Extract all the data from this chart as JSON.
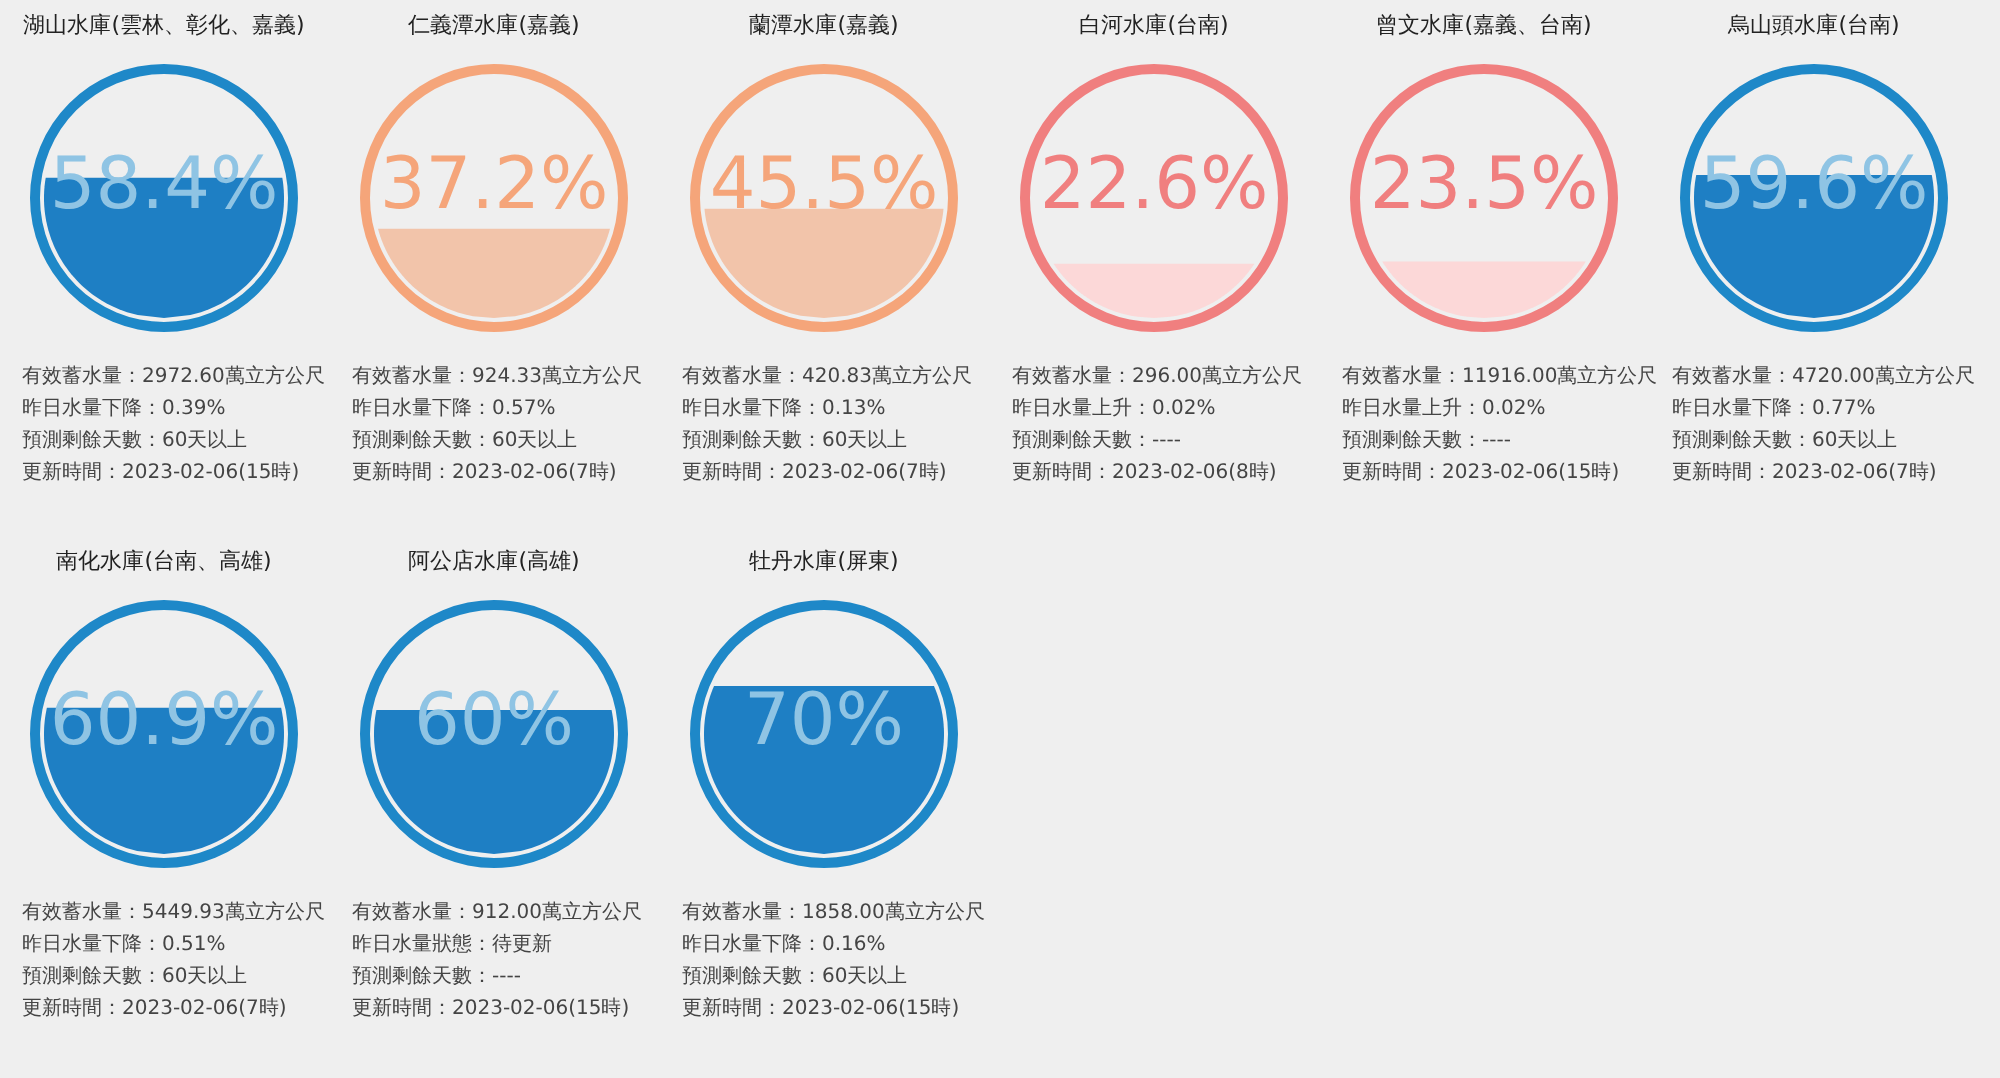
{
  "chart_data": [
    {
      "type": "other",
      "title": "湖山水庫(雲林、彰化、嘉義)",
      "color": "#1e7fc4",
      "series": [
        {
          "color": "#1e88c8",
          "values": [
            58.4
          ],
          "value_labels": [
            "58.4%"
          ]
        }
      ],
      "annotations": [
        "有效蓄水量：2972.60萬立方公尺",
        "昨日水量下降：0.39%",
        "預測剩餘天數：60天以上",
        "更新時間：2023-02-06(15時)"
      ]
    },
    {
      "type": "other",
      "title": "仁義潭水庫(嘉義)",
      "color": "#f2c4aa",
      "series": [
        {
          "color": "#f5a57a",
          "values": [
            37.2
          ],
          "value_labels": [
            "37.2%"
          ]
        }
      ],
      "annotations": [
        "有效蓄水量：924.33萬立方公尺",
        "昨日水量下降：0.57%",
        "預測剩餘天數：60天以上",
        "更新時間：2023-02-06(7時)"
      ]
    },
    {
      "type": "other",
      "title": "蘭潭水庫(嘉義)",
      "color": "#f2c4aa",
      "series": [
        {
          "color": "#f5a57a",
          "values": [
            45.5
          ],
          "value_labels": [
            "45.5%"
          ]
        }
      ],
      "annotations": [
        "有效蓄水量：420.83萬立方公尺",
        "昨日水量下降：0.13%",
        "預測剩餘天數：60天以上",
        "更新時間：2023-02-06(7時)"
      ]
    },
    {
      "type": "other",
      "title": "白河水庫(台南)",
      "color": "#fcd8d8",
      "series": [
        {
          "color": "#f07f7f",
          "values": [
            22.6
          ],
          "value_labels": [
            "22.6%"
          ]
        }
      ],
      "annotations": [
        "有效蓄水量：296.00萬立方公尺",
        "昨日水量上升：0.02%",
        "預測剩餘天數：----",
        "更新時間：2023-02-06(8時)"
      ]
    },
    {
      "type": "other",
      "title": "曾文水庫(嘉義、台南)",
      "color": "#fcd8d8",
      "series": [
        {
          "color": "#f07f7f",
          "values": [
            23.5
          ],
          "value_labels": [
            "23.5%"
          ]
        }
      ],
      "annotations": [
        "有效蓄水量：11916.00萬立方公尺",
        "昨日水量上升：0.02%",
        "預測剩餘天數：----",
        "更新時間：2023-02-06(15時)"
      ]
    },
    {
      "type": "other",
      "title": "烏山頭水庫(台南)",
      "color": "#1e7fc4",
      "series": [
        {
          "color": "#1e88c8",
          "values": [
            59.6
          ],
          "value_labels": [
            "59.6%"
          ]
        }
      ],
      "annotations": [
        "有效蓄水量：4720.00萬立方公尺",
        "昨日水量下降：0.77%",
        "預測剩餘天數：60天以上",
        "更新時間：2023-02-06(7時)"
      ]
    },
    {
      "type": "other",
      "title": "南化水庫(台南、高雄)",
      "color": "#1e7fc4",
      "series": [
        {
          "color": "#1e88c8",
          "values": [
            60.9
          ],
          "value_labels": [
            "60.9%"
          ]
        }
      ],
      "annotations": [
        "有效蓄水量：5449.93萬立方公尺",
        "昨日水量下降：0.51%",
        "預測剩餘天數：60天以上",
        "更新時間：2023-02-06(7時)"
      ]
    },
    {
      "type": "other",
      "title": "阿公店水庫(高雄)",
      "color": "#1e7fc4",
      "series": [
        {
          "color": "#1e88c8",
          "values": [
            60
          ],
          "value_labels": [
            "60%"
          ]
        }
      ],
      "annotations": [
        "有效蓄水量：912.00萬立方公尺",
        "昨日水量狀態：待更新",
        "預測剩餘天數：----",
        "更新時間：2023-02-06(15時)"
      ]
    },
    {
      "type": "other",
      "title": "牡丹水庫(屏東)",
      "color": "#1e7fc4",
      "series": [
        {
          "color": "#1e88c8",
          "values": [
            70
          ],
          "value_labels": [
            "70%"
          ]
        }
      ],
      "annotations": [
        "有效蓄水量：1858.00萬立方公尺",
        "昨日水量下降：0.16%",
        "預測剩餘天數：60天以上",
        "更新時間：2023-02-06(15時)"
      ]
    }
  ]
}
